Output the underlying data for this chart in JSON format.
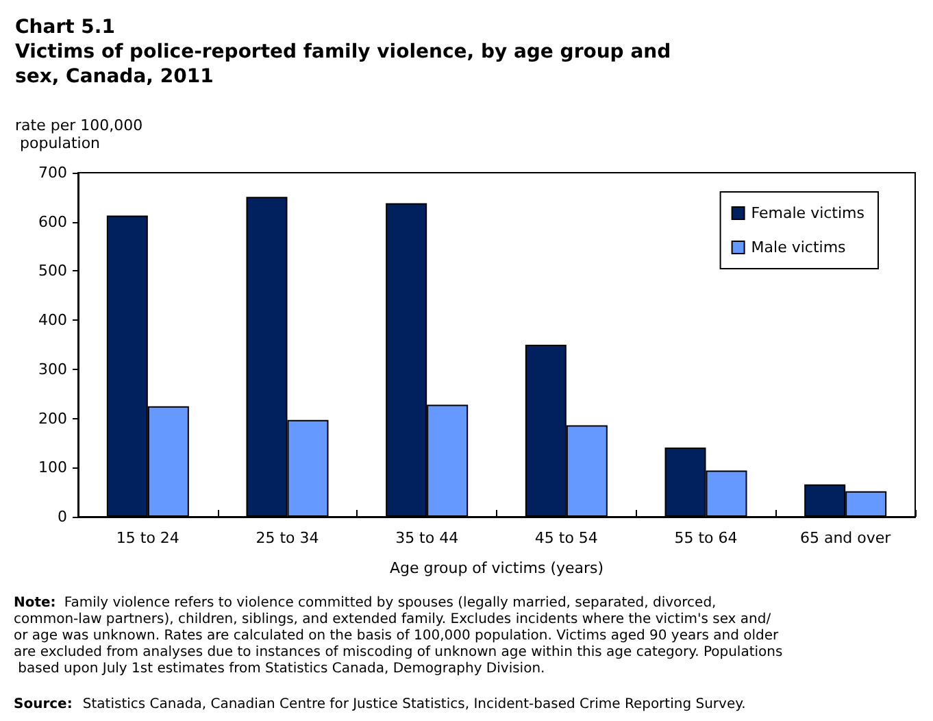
{
  "chart_data": {
    "type": "bar",
    "title": "Chart 5.1",
    "subtitle": "Victims of police-reported family violence, by age group and sex, Canada, 2011",
    "ylabel": "rate per 100,000 population",
    "xlabel": "Age group of victims (years)",
    "categories": [
      "15 to 24",
      "25 to 34",
      "35 to 44",
      "45 to 54",
      "55 to 64",
      "65 and over"
    ],
    "series": [
      {
        "name": "Female victims",
        "color": "#00215e",
        "values": [
          613,
          651,
          638,
          350,
          141,
          66
        ]
      },
      {
        "name": "Male victims",
        "color": "#6699ff",
        "values": [
          225,
          197,
          228,
          186,
          94,
          52
        ]
      }
    ],
    "ylim": [
      0,
      700
    ],
    "yticks": [
      0,
      100,
      200,
      300,
      400,
      500,
      600,
      700
    ],
    "grid": false,
    "legend": "top right",
    "annotations": [
      "Note: Family violence refers to violence committed by spouses (legally married, separated, divorced, common-law partners), children, siblings, and extended family. Excludes incidents where the victim's sex and/or age was unknown. Rates are calculated on the basis of 100,000 population. Victims aged 90 years and older are excluded from analyses due to instances of miscoding of unknown age within this age category. Populations based upon July 1st estimates from Statistics Canada, Demography Division.",
      "Source: Statistics Canada, Canadian Centre for Justice Statistics, Incident-based Crime Reporting Survey."
    ]
  }
}
